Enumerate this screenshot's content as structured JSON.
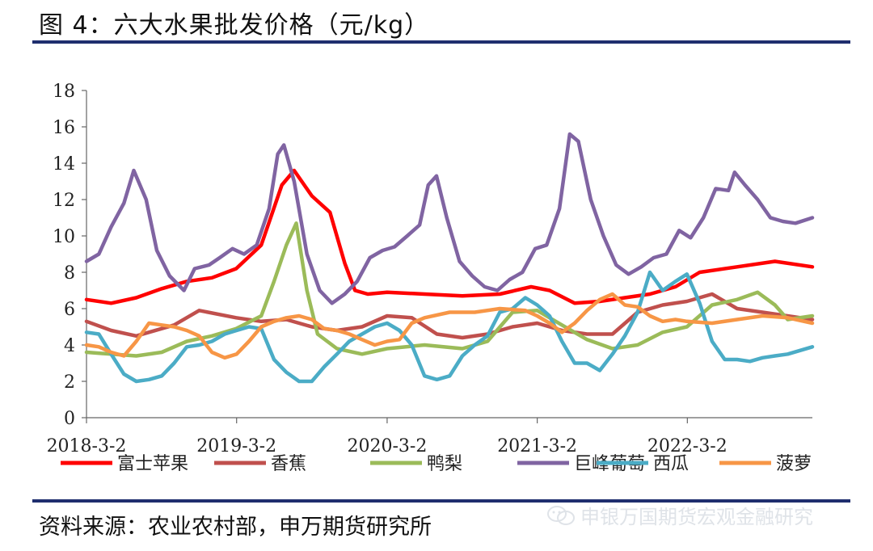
{
  "title": "图 4：六大水果批发价格（元/kg）",
  "source": "资料来源：农业农村部，申万期货研究所",
  "watermark": "申银万国期货宏观金融研究",
  "chart_data": {
    "type": "line",
    "title": "",
    "xlabel": "",
    "ylabel": "",
    "ylim": [
      0,
      18
    ],
    "yticks": [
      0,
      2,
      4,
      6,
      8,
      10,
      12,
      14,
      16,
      18
    ],
    "xlim": [
      "2018-03-02",
      "2022-12-31"
    ],
    "x_tick_labels": [
      "2018-3-2",
      "2019-3-2",
      "2020-3-2",
      "2021-3-2",
      "2022-3-2"
    ],
    "grid": false,
    "legend": "bottom",
    "series": [
      {
        "name": "富士苹果",
        "color": "#ff0000",
        "points": [
          [
            "2018-03-02",
            6.5
          ],
          [
            "2018-05-01",
            6.3
          ],
          [
            "2018-07-01",
            6.6
          ],
          [
            "2018-09-01",
            7.1
          ],
          [
            "2018-11-01",
            7.5
          ],
          [
            "2019-01-01",
            7.7
          ],
          [
            "2019-03-01",
            8.2
          ],
          [
            "2019-05-01",
            9.5
          ],
          [
            "2019-06-20",
            12.8
          ],
          [
            "2019-07-20",
            13.6
          ],
          [
            "2019-09-01",
            12.2
          ],
          [
            "2019-10-15",
            11.3
          ],
          [
            "2019-11-20",
            8.5
          ],
          [
            "2019-12-15",
            7.0
          ],
          [
            "2020-01-15",
            6.8
          ],
          [
            "2020-03-02",
            6.9
          ],
          [
            "2020-06-01",
            6.8
          ],
          [
            "2020-09-01",
            6.7
          ],
          [
            "2020-12-01",
            6.8
          ],
          [
            "2021-02-15",
            7.2
          ],
          [
            "2021-04-01",
            7.0
          ],
          [
            "2021-06-01",
            6.3
          ],
          [
            "2021-08-01",
            6.4
          ],
          [
            "2021-10-01",
            6.6
          ],
          [
            "2021-12-01",
            6.8
          ],
          [
            "2022-02-01",
            7.2
          ],
          [
            "2022-04-01",
            8.0
          ],
          [
            "2022-07-01",
            8.3
          ],
          [
            "2022-10-01",
            8.6
          ],
          [
            "2022-12-31",
            8.3
          ]
        ]
      },
      {
        "name": "香蕉",
        "color": "#c0504d",
        "points": [
          [
            "2018-03-02",
            5.3
          ],
          [
            "2018-05-01",
            4.8
          ],
          [
            "2018-07-01",
            4.5
          ],
          [
            "2018-10-01",
            5.1
          ],
          [
            "2018-12-01",
            5.9
          ],
          [
            "2019-03-01",
            5.5
          ],
          [
            "2019-05-01",
            5.3
          ],
          [
            "2019-07-01",
            5.4
          ],
          [
            "2019-09-01",
            5.0
          ],
          [
            "2019-11-01",
            4.8
          ],
          [
            "2020-01-01",
            5.0
          ],
          [
            "2020-03-02",
            5.6
          ],
          [
            "2020-05-01",
            5.5
          ],
          [
            "2020-07-01",
            4.6
          ],
          [
            "2020-09-01",
            4.4
          ],
          [
            "2020-11-01",
            4.6
          ],
          [
            "2021-01-01",
            5.0
          ],
          [
            "2021-03-02",
            5.2
          ],
          [
            "2021-05-01",
            4.8
          ],
          [
            "2021-07-01",
            4.6
          ],
          [
            "2021-09-01",
            4.6
          ],
          [
            "2021-11-01",
            5.8
          ],
          [
            "2022-01-01",
            6.2
          ],
          [
            "2022-03-01",
            6.4
          ],
          [
            "2022-05-01",
            6.8
          ],
          [
            "2022-07-01",
            6.0
          ],
          [
            "2022-09-01",
            5.8
          ],
          [
            "2022-12-31",
            5.4
          ]
        ]
      },
      {
        "name": "鸭梨",
        "color": "#9bbb59",
        "points": [
          [
            "2018-03-02",
            3.6
          ],
          [
            "2018-05-01",
            3.5
          ],
          [
            "2018-07-01",
            3.4
          ],
          [
            "2018-09-01",
            3.6
          ],
          [
            "2018-11-01",
            4.2
          ],
          [
            "2019-01-01",
            4.5
          ],
          [
            "2019-03-01",
            4.9
          ],
          [
            "2019-05-01",
            5.6
          ],
          [
            "2019-06-01",
            7.5
          ],
          [
            "2019-07-01",
            9.5
          ],
          [
            "2019-07-25",
            10.7
          ],
          [
            "2019-08-20",
            7.0
          ],
          [
            "2019-09-15",
            4.6
          ],
          [
            "2019-11-01",
            3.8
          ],
          [
            "2020-01-01",
            3.5
          ],
          [
            "2020-03-02",
            3.8
          ],
          [
            "2020-06-01",
            4.0
          ],
          [
            "2020-09-01",
            3.8
          ],
          [
            "2020-11-01",
            4.2
          ],
          [
            "2021-01-01",
            5.8
          ],
          [
            "2021-03-02",
            5.9
          ],
          [
            "2021-05-01",
            5.1
          ],
          [
            "2021-07-01",
            4.3
          ],
          [
            "2021-09-01",
            3.8
          ],
          [
            "2021-11-01",
            4.0
          ],
          [
            "2022-01-01",
            4.7
          ],
          [
            "2022-03-01",
            5.0
          ],
          [
            "2022-05-01",
            6.2
          ],
          [
            "2022-07-01",
            6.5
          ],
          [
            "2022-08-20",
            6.9
          ],
          [
            "2022-10-01",
            6.2
          ],
          [
            "2022-11-01",
            5.4
          ],
          [
            "2022-12-31",
            5.6
          ]
        ]
      },
      {
        "name": "巨峰葡萄",
        "color": "#8064a2",
        "points": [
          [
            "2018-03-02",
            8.6
          ],
          [
            "2018-04-01",
            9.0
          ],
          [
            "2018-05-01",
            10.5
          ],
          [
            "2018-06-01",
            11.8
          ],
          [
            "2018-06-25",
            13.6
          ],
          [
            "2018-07-25",
            12.0
          ],
          [
            "2018-08-20",
            9.2
          ],
          [
            "2018-09-20",
            7.8
          ],
          [
            "2018-10-25",
            7.0
          ],
          [
            "2018-11-20",
            8.2
          ],
          [
            "2018-12-25",
            8.4
          ],
          [
            "2019-01-20",
            8.8
          ],
          [
            "2019-02-20",
            9.3
          ],
          [
            "2019-03-20",
            9.0
          ],
          [
            "2019-04-20",
            9.5
          ],
          [
            "2019-05-20",
            11.5
          ],
          [
            "2019-06-10",
            14.5
          ],
          [
            "2019-06-25",
            15.0
          ],
          [
            "2019-07-20",
            13.0
          ],
          [
            "2019-08-20",
            9.0
          ],
          [
            "2019-09-20",
            7.0
          ],
          [
            "2019-10-20",
            6.3
          ],
          [
            "2019-11-20",
            6.8
          ],
          [
            "2019-12-20",
            7.5
          ],
          [
            "2020-01-20",
            8.8
          ],
          [
            "2020-02-20",
            9.2
          ],
          [
            "2020-03-20",
            9.4
          ],
          [
            "2020-04-20",
            10.0
          ],
          [
            "2020-05-20",
            10.6
          ],
          [
            "2020-06-10",
            12.8
          ],
          [
            "2020-06-30",
            13.3
          ],
          [
            "2020-07-25",
            11.0
          ],
          [
            "2020-08-25",
            8.6
          ],
          [
            "2020-09-25",
            7.8
          ],
          [
            "2020-10-25",
            7.2
          ],
          [
            "2020-11-25",
            7.0
          ],
          [
            "2020-12-25",
            7.6
          ],
          [
            "2021-01-25",
            8.0
          ],
          [
            "2021-02-25",
            9.3
          ],
          [
            "2021-03-25",
            9.5
          ],
          [
            "2021-04-25",
            11.5
          ],
          [
            "2021-05-20",
            15.6
          ],
          [
            "2021-06-10",
            15.2
          ],
          [
            "2021-07-10",
            12.0
          ],
          [
            "2021-08-10",
            10.0
          ],
          [
            "2021-09-10",
            8.4
          ],
          [
            "2021-10-10",
            7.9
          ],
          [
            "2021-11-10",
            8.3
          ],
          [
            "2021-12-10",
            8.8
          ],
          [
            "2022-01-10",
            9.0
          ],
          [
            "2022-02-10",
            10.3
          ],
          [
            "2022-03-10",
            9.9
          ],
          [
            "2022-04-10",
            11.0
          ],
          [
            "2022-05-10",
            12.6
          ],
          [
            "2022-06-10",
            12.5
          ],
          [
            "2022-06-25",
            13.5
          ],
          [
            "2022-07-20",
            12.8
          ],
          [
            "2022-08-20",
            12.0
          ],
          [
            "2022-09-20",
            11.0
          ],
          [
            "2022-10-20",
            10.8
          ],
          [
            "2022-11-20",
            10.7
          ],
          [
            "2022-12-31",
            11.0
          ]
        ]
      },
      {
        "name": "西瓜",
        "color": "#4bacc6",
        "points": [
          [
            "2018-03-02",
            4.7
          ],
          [
            "2018-04-01",
            4.6
          ],
          [
            "2018-05-01",
            3.5
          ],
          [
            "2018-06-01",
            2.4
          ],
          [
            "2018-07-01",
            2.0
          ],
          [
            "2018-08-01",
            2.1
          ],
          [
            "2018-09-01",
            2.3
          ],
          [
            "2018-10-01",
            3.0
          ],
          [
            "2018-11-01",
            3.9
          ],
          [
            "2018-12-01",
            4.0
          ],
          [
            "2019-01-01",
            4.2
          ],
          [
            "2019-02-01",
            4.6
          ],
          [
            "2019-03-02",
            4.8
          ],
          [
            "2019-04-01",
            5.0
          ],
          [
            "2019-05-01",
            4.9
          ],
          [
            "2019-06-01",
            3.2
          ],
          [
            "2019-07-01",
            2.5
          ],
          [
            "2019-08-01",
            2.0
          ],
          [
            "2019-09-01",
            2.0
          ],
          [
            "2019-10-01",
            2.8
          ],
          [
            "2019-11-01",
            3.5
          ],
          [
            "2019-12-01",
            4.2
          ],
          [
            "2020-01-01",
            4.6
          ],
          [
            "2020-02-01",
            5.0
          ],
          [
            "2020-03-02",
            5.2
          ],
          [
            "2020-04-01",
            4.8
          ],
          [
            "2020-05-01",
            4.0
          ],
          [
            "2020-06-01",
            2.3
          ],
          [
            "2020-07-01",
            2.1
          ],
          [
            "2020-08-01",
            2.3
          ],
          [
            "2020-09-01",
            3.4
          ],
          [
            "2020-10-01",
            4.0
          ],
          [
            "2020-11-01",
            4.5
          ],
          [
            "2020-12-01",
            5.8
          ],
          [
            "2021-01-01",
            6.0
          ],
          [
            "2021-02-01",
            6.6
          ],
          [
            "2021-03-02",
            6.2
          ],
          [
            "2021-04-01",
            5.6
          ],
          [
            "2021-05-01",
            4.2
          ],
          [
            "2021-06-01",
            3.0
          ],
          [
            "2021-07-01",
            3.0
          ],
          [
            "2021-08-01",
            2.6
          ],
          [
            "2021-09-01",
            3.5
          ],
          [
            "2021-10-01",
            4.5
          ],
          [
            "2021-11-01",
            5.8
          ],
          [
            "2021-12-01",
            8.0
          ],
          [
            "2022-01-01",
            7.0
          ],
          [
            "2022-02-01",
            7.5
          ],
          [
            "2022-03-01",
            7.9
          ],
          [
            "2022-04-01",
            6.3
          ],
          [
            "2022-05-01",
            4.2
          ],
          [
            "2022-06-01",
            3.2
          ],
          [
            "2022-07-01",
            3.2
          ],
          [
            "2022-08-01",
            3.1
          ],
          [
            "2022-09-01",
            3.3
          ],
          [
            "2022-10-01",
            3.4
          ],
          [
            "2022-11-01",
            3.5
          ],
          [
            "2022-12-31",
            3.9
          ]
        ]
      },
      {
        "name": "菠萝",
        "color": "#f79646",
        "points": [
          [
            "2018-03-02",
            4.0
          ],
          [
            "2018-04-01",
            3.9
          ],
          [
            "2018-05-01",
            3.6
          ],
          [
            "2018-06-01",
            3.4
          ],
          [
            "2018-07-01",
            4.2
          ],
          [
            "2018-08-01",
            5.2
          ],
          [
            "2018-09-01",
            5.1
          ],
          [
            "2018-10-01",
            5.0
          ],
          [
            "2018-11-01",
            4.8
          ],
          [
            "2018-12-01",
            4.5
          ],
          [
            "2019-01-01",
            3.6
          ],
          [
            "2019-02-01",
            3.3
          ],
          [
            "2019-03-02",
            3.5
          ],
          [
            "2019-04-01",
            4.2
          ],
          [
            "2019-05-01",
            5.0
          ],
          [
            "2019-06-01",
            5.3
          ],
          [
            "2019-07-01",
            5.5
          ],
          [
            "2019-08-01",
            5.6
          ],
          [
            "2019-09-01",
            5.4
          ],
          [
            "2019-10-01",
            4.9
          ],
          [
            "2019-11-01",
            4.8
          ],
          [
            "2019-12-01",
            4.6
          ],
          [
            "2020-01-01",
            4.3
          ],
          [
            "2020-02-01",
            4.0
          ],
          [
            "2020-03-02",
            4.2
          ],
          [
            "2020-04-01",
            4.3
          ],
          [
            "2020-05-01",
            5.2
          ],
          [
            "2020-06-01",
            5.5
          ],
          [
            "2020-08-01",
            5.8
          ],
          [
            "2020-10-01",
            5.8
          ],
          [
            "2020-12-01",
            6.0
          ],
          [
            "2021-02-01",
            5.9
          ],
          [
            "2021-03-02",
            5.6
          ],
          [
            "2021-04-01",
            5.2
          ],
          [
            "2021-05-01",
            4.7
          ],
          [
            "2021-06-01",
            5.2
          ],
          [
            "2021-07-01",
            5.9
          ],
          [
            "2021-08-01",
            6.5
          ],
          [
            "2021-09-01",
            6.8
          ],
          [
            "2021-10-01",
            6.2
          ],
          [
            "2021-11-01",
            6.1
          ],
          [
            "2021-12-01",
            5.6
          ],
          [
            "2022-01-01",
            5.3
          ],
          [
            "2022-02-01",
            5.4
          ],
          [
            "2022-03-01",
            5.3
          ],
          [
            "2022-05-01",
            5.2
          ],
          [
            "2022-07-01",
            5.4
          ],
          [
            "2022-09-01",
            5.6
          ],
          [
            "2022-11-01",
            5.5
          ],
          [
            "2022-12-31",
            5.2
          ]
        ]
      }
    ]
  }
}
